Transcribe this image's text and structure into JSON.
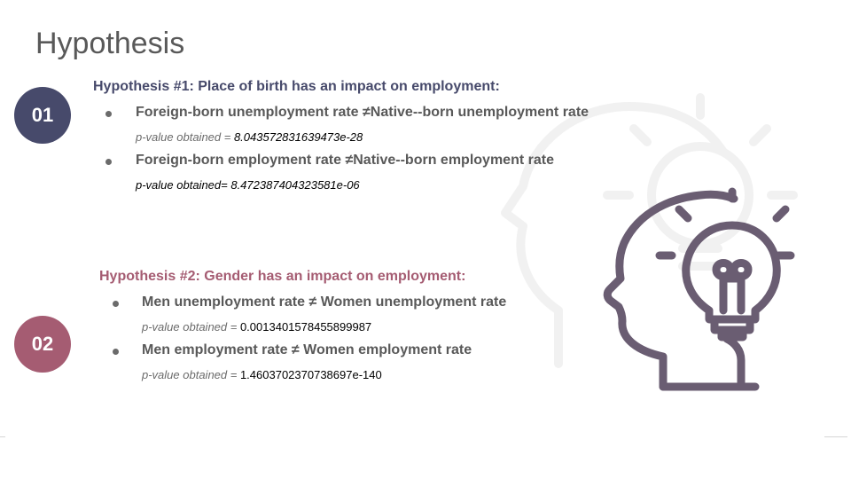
{
  "slide": {
    "title": "Hypothesis",
    "colors": {
      "primary": "#474a6b",
      "secondary": "#a55c72",
      "text": "#595959",
      "icon": "#6a5d72"
    },
    "hypotheses": [
      {
        "number": "01",
        "heading": "Hypothesis #1: Place of birth has an impact on employment:",
        "items": [
          {
            "statement": "Foreign-born unemployment rate ≠Native--born unemployment rate",
            "pvalue_label": "p-value obtained = ",
            "pvalue": "8.043572831639473e-28"
          },
          {
            "statement": "Foreign-born employment rate ≠Native--born employment rate",
            "pvalue_label": "p-value obtained= ",
            "pvalue": "8.472387404323581e-06"
          }
        ]
      },
      {
        "number": "02",
        "heading": "Hypothesis #2: Gender has an impact on employment:",
        "items": [
          {
            "statement": "Men unemployment rate ≠ Women unemployment rate",
            "pvalue_label": "p-value obtained = ",
            "pvalue": "0.0013401578455899987"
          },
          {
            "statement": "Men employment rate ≠ Women employment rate",
            "pvalue_label": "p-value obtained = ",
            "pvalue": "1.4603702370738697e-140"
          }
        ]
      }
    ],
    "illustration_icon": "head-lightbulb-icon",
    "watermark_icon": "head-lightbulb-watermark-icon"
  }
}
